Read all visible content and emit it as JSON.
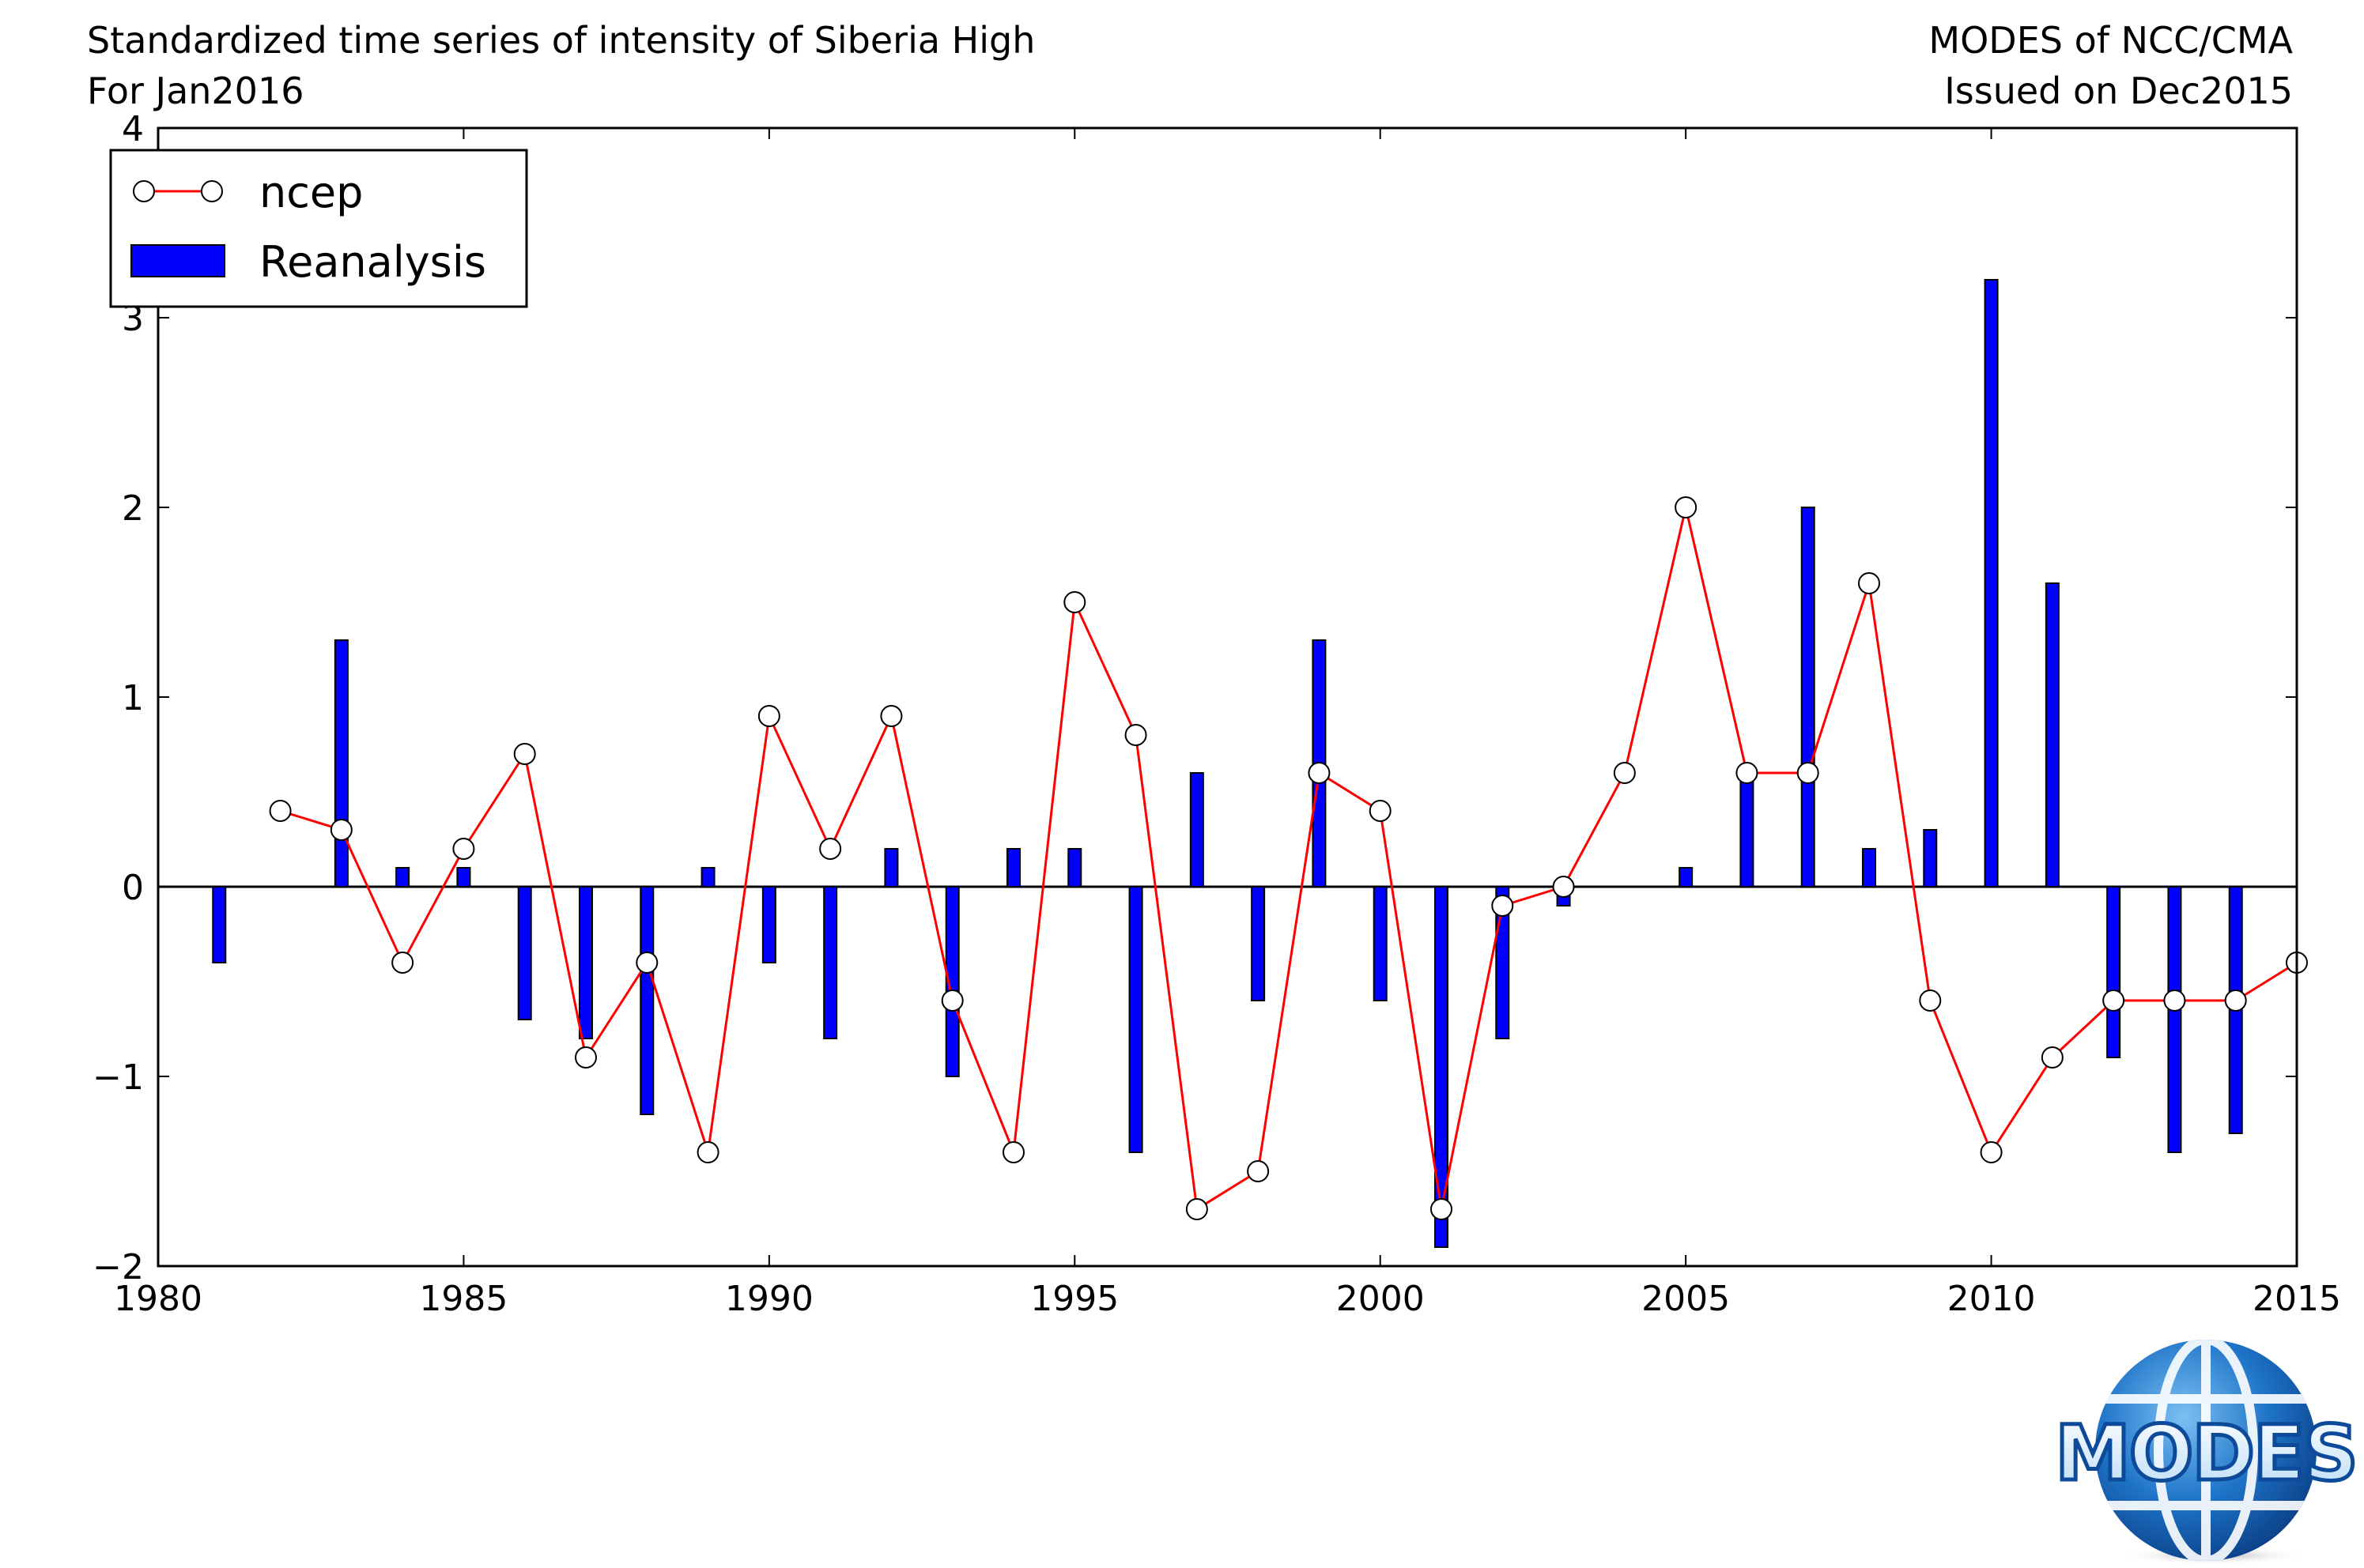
{
  "header": {
    "title": "Standardized time series of intensity of Siberia High",
    "subtitle": "For Jan2016",
    "source": "MODES of NCC/CMA",
    "issued": "Issued on Dec2015"
  },
  "logo": {
    "text": "MODES",
    "colors": {
      "primary": "#1565c0",
      "light": "#5aa9e6"
    }
  },
  "chart_data": {
    "type": "bar",
    "xlim": [
      1980,
      2015
    ],
    "ylim": [
      -2,
      4
    ],
    "xticks": [
      1980,
      1985,
      1990,
      1995,
      2000,
      2005,
      2010,
      2015
    ],
    "yticks": [
      -2,
      -1,
      0,
      1,
      2,
      3,
      4
    ],
    "ytick_labels": [
      "−2",
      "−1",
      "0",
      "1",
      "2",
      "3",
      "4"
    ],
    "grid": false,
    "legend_position": "top-left",
    "series": [
      {
        "name": "ncep",
        "type": "line",
        "color": "#ff0000",
        "marker": "open-circle",
        "x": [
          1982,
          1983,
          1984,
          1985,
          1986,
          1987,
          1988,
          1989,
          1990,
          1991,
          1992,
          1993,
          1994,
          1995,
          1996,
          1997,
          1998,
          1999,
          2000,
          2001,
          2002,
          2003,
          2004,
          2005,
          2006,
          2007,
          2008,
          2009,
          2010,
          2011,
          2012,
          2013,
          2014,
          2015
        ],
        "values": [
          0.4,
          0.3,
          -0.4,
          0.2,
          0.7,
          -0.9,
          -0.4,
          -1.4,
          0.9,
          0.2,
          0.9,
          -0.6,
          -1.4,
          1.5,
          0.8,
          -1.7,
          -1.5,
          0.6,
          0.4,
          -1.7,
          -0.1,
          0.0,
          0.6,
          2.0,
          0.6,
          0.6,
          1.6,
          -0.6,
          -1.4,
          -0.9,
          -0.6,
          -0.6,
          -0.6,
          -0.4
        ]
      },
      {
        "name": "Reanalysis",
        "type": "bar",
        "color": "#0000ff",
        "x": [
          1981,
          1982,
          1983,
          1984,
          1985,
          1986,
          1987,
          1988,
          1989,
          1990,
          1991,
          1992,
          1993,
          1994,
          1995,
          1996,
          1997,
          1998,
          1999,
          2000,
          2001,
          2002,
          2003,
          2004,
          2005,
          2006,
          2007,
          2008,
          2009,
          2010,
          2011,
          2012,
          2013,
          2014
        ],
        "values": [
          -0.4,
          0.0,
          1.3,
          0.1,
          0.1,
          -0.7,
          -0.8,
          -1.2,
          0.1,
          -0.4,
          -0.8,
          0.2,
          -1.0,
          0.2,
          0.2,
          -1.4,
          0.6,
          -0.6,
          1.3,
          -0.6,
          -1.9,
          -0.8,
          -0.1,
          0.0,
          0.1,
          0.6,
          2.0,
          0.2,
          0.3,
          3.2,
          1.6,
          -0.9,
          -1.4,
          -1.3
        ]
      }
    ]
  }
}
